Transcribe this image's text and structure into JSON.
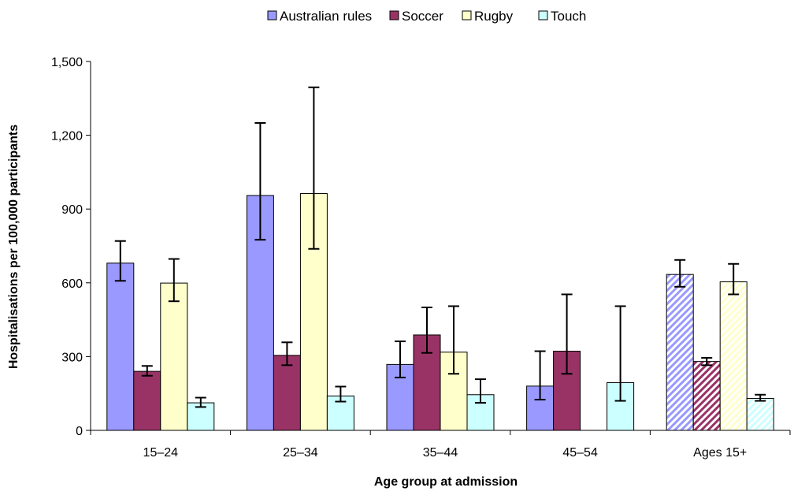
{
  "chart_data": {
    "type": "bar",
    "title": "",
    "xlabel": "Age group at admission",
    "ylabel": "Hospitalisations per 100,000 participants",
    "ylim": [
      0,
      1500
    ],
    "yticks": [
      0,
      300,
      600,
      900,
      1200,
      1500
    ],
    "ytick_labels": [
      "0",
      "300",
      "600",
      "900",
      "1,200",
      "1,500"
    ],
    "categories": [
      "15–24",
      "25–34",
      "35–44",
      "45–54",
      "Ages 15+"
    ],
    "legend_position": "top",
    "grid": false,
    "series": [
      {
        "name": "Australian rules",
        "color": "#9999ff",
        "values": [
          680,
          955,
          268,
          180,
          634
        ],
        "ci_low": [
          608,
          775,
          215,
          125,
          584
        ],
        "ci_high": [
          770,
          1250,
          362,
          322,
          693
        ]
      },
      {
        "name": "Soccer",
        "color": "#993366",
        "values": [
          240,
          305,
          388,
          322,
          280
        ],
        "ci_low": [
          222,
          265,
          315,
          230,
          265
        ],
        "ci_high": [
          262,
          358,
          500,
          553,
          295
        ]
      },
      {
        "name": "Rugby",
        "color": "#ffffcc",
        "values": [
          599,
          963,
          318,
          0,
          604
        ],
        "ci_low": [
          525,
          738,
          230,
          null,
          553
        ],
        "ci_high": [
          697,
          1395,
          505,
          null,
          677
        ]
      },
      {
        "name": "Touch",
        "color": "#ccffff",
        "values": [
          112,
          140,
          145,
          194,
          130
        ],
        "ci_low": [
          95,
          117,
          112,
          120,
          120
        ],
        "ci_high": [
          133,
          178,
          208,
          505,
          145
        ]
      }
    ],
    "hatched_category": "Ages 15+"
  }
}
